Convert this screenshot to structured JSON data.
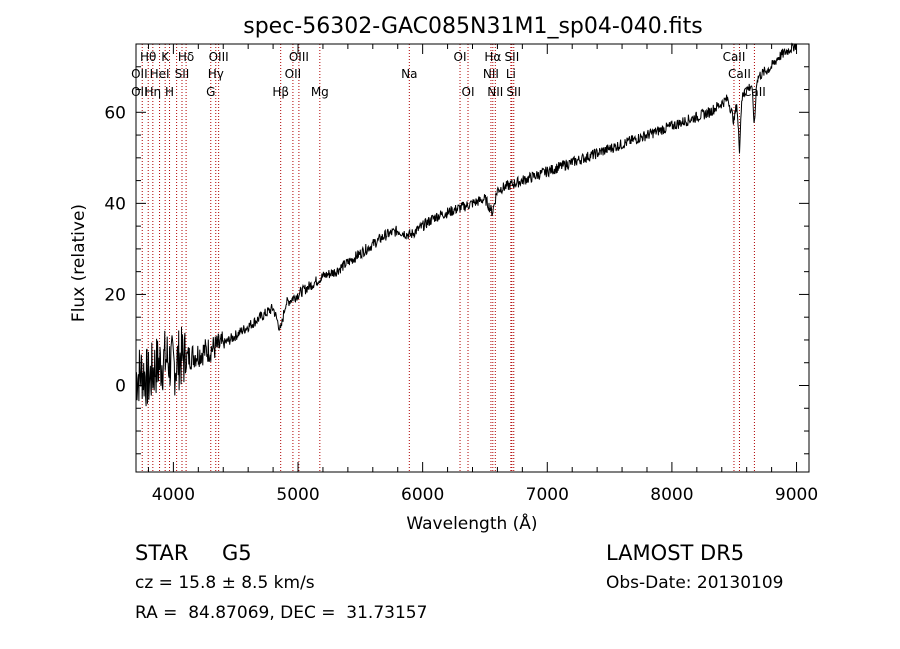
{
  "chart_data": {
    "type": "line",
    "title": "spec-56302-GAC085N31M1_sp04-040.fits",
    "xlabel": "Wavelength (Å)",
    "ylabel": "Flux (relative)",
    "xlim": [
      3700,
      9100
    ],
    "ylim": [
      -19,
      75
    ],
    "xticks": [
      4000,
      5000,
      6000,
      7000,
      8000,
      9000
    ],
    "yticks": [
      0,
      20,
      40,
      60
    ],
    "series": [
      {
        "x": [
          3700,
          3750,
          3800,
          3850,
          3900,
          3950,
          4000,
          4050,
          4100,
          4200,
          4300,
          4400,
          4500,
          4600,
          4700,
          4800,
          4860,
          4900,
          5000,
          5100,
          5200,
          5300,
          5400,
          5500,
          5600,
          5700,
          5800,
          5900,
          6000,
          6100,
          6200,
          6300,
          6400,
          6500,
          6560,
          6600,
          6700,
          6800,
          6900,
          7000,
          7100,
          7200,
          7300,
          7400,
          7500,
          7600,
          7700,
          7800,
          7900,
          8000,
          8100,
          8200,
          8300,
          8400,
          8450,
          8498,
          8520,
          8542,
          8560,
          8600,
          8640,
          8662,
          8680,
          8700,
          8750,
          8800,
          8850,
          8900,
          8950,
          9000
        ],
        "y": [
          2,
          3,
          1,
          4,
          5,
          6,
          4,
          6,
          6,
          7,
          8,
          9,
          11,
          13,
          15,
          17,
          12,
          18,
          20,
          22,
          24,
          25,
          27,
          29,
          31,
          33,
          34,
          33,
          35,
          37,
          38,
          39,
          40,
          41,
          38,
          43,
          44,
          45,
          46,
          47,
          48,
          49,
          50,
          51,
          52,
          53,
          54,
          55,
          56,
          57,
          58,
          59,
          60,
          62,
          63,
          58,
          62,
          52,
          63,
          65,
          66,
          57,
          67,
          68,
          69,
          70,
          72,
          73,
          74,
          75
        ]
      }
    ],
    "line_positions": [
      3750,
      3798,
      3835,
      3889,
      3934,
      3969,
      4026,
      4069,
      4102,
      4300,
      4340,
      4363,
      4861,
      4959,
      5007,
      5175,
      5893,
      6300,
      6364,
      6548,
      6563,
      6583,
      6708,
      6716,
      6731,
      8498,
      8542,
      8662
    ],
    "line_labels": [
      {
        "text": "Hθ",
        "x": 3798,
        "row": 1
      },
      {
        "text": "K",
        "x": 3934,
        "row": 1
      },
      {
        "text": "Hδ",
        "x": 4102,
        "row": 1
      },
      {
        "text": "OIII",
        "x": 4363,
        "row": 1
      },
      {
        "text": "OIII",
        "x": 5007,
        "row": 1
      },
      {
        "text": "OI",
        "x": 6300,
        "row": 1
      },
      {
        "text": "Hα",
        "x": 6563,
        "row": 1
      },
      {
        "text": "SII",
        "x": 6716,
        "row": 1
      },
      {
        "text": "CaII",
        "x": 8498,
        "row": 1
      },
      {
        "text": "OII",
        "x": 3727,
        "row": 2
      },
      {
        "text": "HeI",
        "x": 3889,
        "row": 2
      },
      {
        "text": "SII",
        "x": 4069,
        "row": 2
      },
      {
        "text": "Hγ",
        "x": 4340,
        "row": 2
      },
      {
        "text": "OII",
        "x": 4959,
        "row": 2
      },
      {
        "text": "Na",
        "x": 5893,
        "row": 2
      },
      {
        "text": "NII",
        "x": 6548,
        "row": 2
      },
      {
        "text": "Li",
        "x": 6708,
        "row": 2
      },
      {
        "text": "CaII",
        "x": 8542,
        "row": 2
      },
      {
        "text": "OII",
        "x": 3727,
        "row": 3
      },
      {
        "text": "Hη",
        "x": 3835,
        "row": 3
      },
      {
        "text": "H",
        "x": 3969,
        "row": 3
      },
      {
        "text": "G",
        "x": 4300,
        "row": 3
      },
      {
        "text": "Hβ",
        "x": 4861,
        "row": 3
      },
      {
        "text": "Mg",
        "x": 5175,
        "row": 3
      },
      {
        "text": "OI",
        "x": 6364,
        "row": 3
      },
      {
        "text": "NII",
        "x": 6583,
        "row": 3
      },
      {
        "text": "SII",
        "x": 6731,
        "row": 3
      },
      {
        "text": "CaII",
        "x": 8662,
        "row": 3
      }
    ],
    "grid": false
  },
  "info": {
    "class_label": "STAR",
    "subclass": "G5",
    "survey": "LAMOST DR5",
    "cz": "cz = 15.8 ± 8.5 km/s",
    "obs_date": "Obs-Date: 20130109",
    "coords": "RA =  84.87069, DEC =  31.73157"
  },
  "colors": {
    "line_marker": "#b00000",
    "spectrum": "#000000",
    "axis": "#000000"
  }
}
